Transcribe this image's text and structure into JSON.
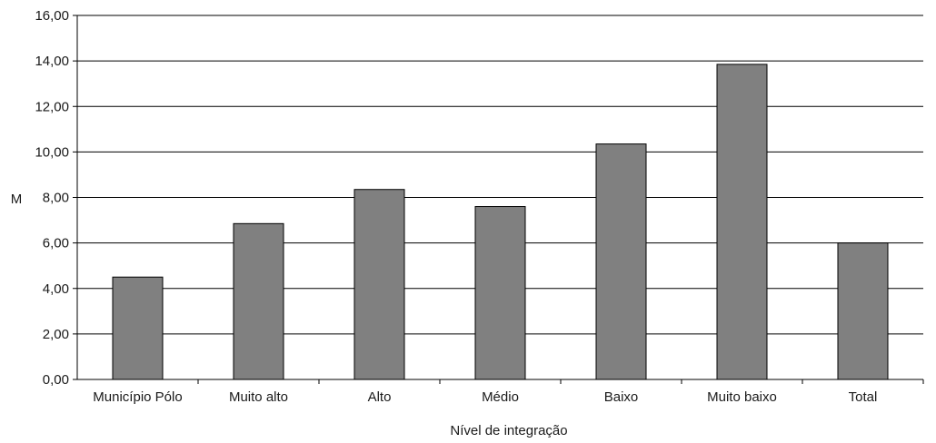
{
  "chart_data": {
    "type": "bar",
    "categories": [
      "Município Pólo",
      "Muito alto",
      "Alto",
      "Médio",
      "Baixo",
      "Muito baixo",
      "Total"
    ],
    "values": [
      4.5,
      6.85,
      8.35,
      7.6,
      10.35,
      13.85,
      6.0
    ],
    "xlabel": "Nível de integração",
    "ylabel": "M",
    "ylim": [
      0,
      16
    ],
    "yticks": [
      "0,00",
      "2,00",
      "4,00",
      "6,00",
      "8,00",
      "10,00",
      "12,00",
      "14,00",
      "16,00"
    ],
    "grid": true,
    "bar_color": "#808080",
    "legend": "none"
  }
}
